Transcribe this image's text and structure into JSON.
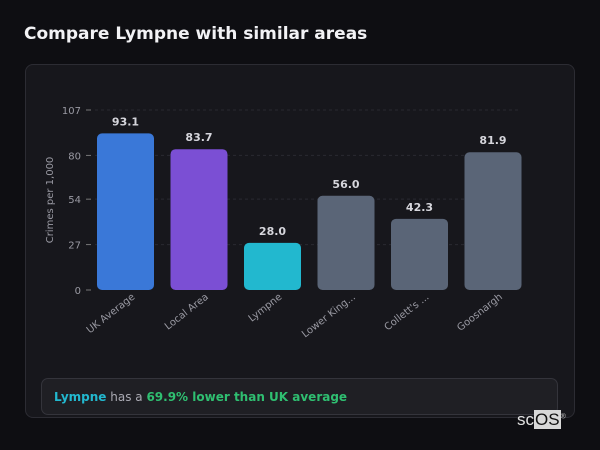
{
  "header": {
    "title": "Compare Lympne with similar areas"
  },
  "chart_data": {
    "type": "bar",
    "ylabel": "Crimes per 1,000",
    "xlabel": "",
    "ylim": [
      0,
      107
    ],
    "yticks": [
      0,
      27,
      54,
      80,
      107
    ],
    "grid": true,
    "categories": [
      "UK Average",
      "Local Area",
      "Lympne",
      "Lower King...",
      "Collett's ...",
      "Goosnargh"
    ],
    "values": [
      93.1,
      83.7,
      28.0,
      56.0,
      42.3,
      81.9
    ],
    "value_labels": [
      "93.1",
      "83.7",
      "28.0",
      "56.0",
      "42.3",
      "81.9"
    ],
    "colors": [
      "#3a78d8",
      "#7b4fd4",
      "#22b8cf",
      "#5a6577",
      "#5a6577",
      "#5a6577"
    ]
  },
  "summary": {
    "area": "Lympne",
    "middle": " has a ",
    "comparison": "69.9% lower than UK average"
  },
  "logo": {
    "text1": "sc",
    "text2": "OS",
    "mark": "®"
  }
}
